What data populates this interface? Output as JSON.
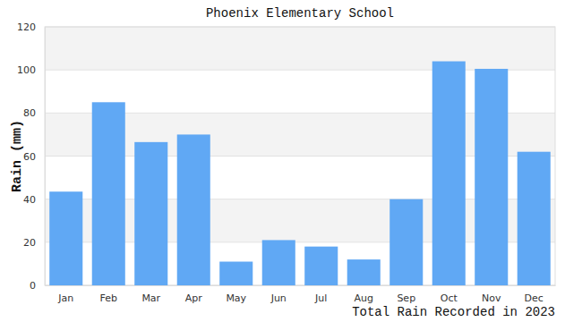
{
  "chart_data": {
    "type": "bar",
    "title": "Phoenix Elementary School",
    "x_label": "Total Rain Recorded in 2023",
    "y_label": "Rain (mm)",
    "categories": [
      "Jan",
      "Feb",
      "Mar",
      "Apr",
      "May",
      "Jun",
      "Jul",
      "Aug",
      "Sep",
      "Oct",
      "Nov",
      "Dec"
    ],
    "values": [
      43.5,
      85,
      66.5,
      70,
      11,
      21,
      18,
      12,
      40,
      104,
      100.5,
      62
    ],
    "color": "#60a8f4",
    "ylim": [
      0,
      120
    ],
    "yticks": [
      0,
      20,
      40,
      60,
      80,
      100,
      120
    ],
    "grid": true
  }
}
